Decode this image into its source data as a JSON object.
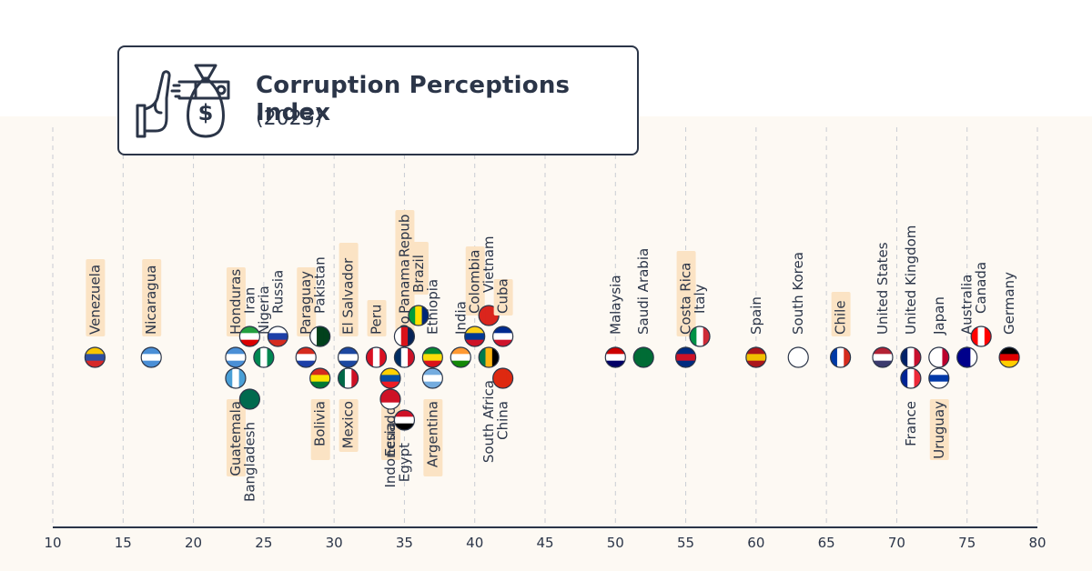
{
  "chart_data": {
    "type": "scatter",
    "title": "Corruption Perceptions Index",
    "subtitle": "(2023)",
    "xlim": [
      10,
      80
    ],
    "x_ticks": [
      10,
      15,
      20,
      25,
      30,
      35,
      40,
      45,
      50,
      55,
      60,
      65,
      70,
      75,
      80
    ],
    "grid": "vertical dashed",
    "highlight_color": "#fbe3c4",
    "points": [
      {
        "country": "Venezuela",
        "score": 13,
        "label": "above",
        "highlight": true
      },
      {
        "country": "Nicaragua",
        "score": 17,
        "label": "above",
        "highlight": true
      },
      {
        "country": "Honduras",
        "score": 23,
        "label": "above",
        "highlight": true
      },
      {
        "country": "Guatemala",
        "score": 23,
        "label": "below",
        "highlight": true
      },
      {
        "country": "Iran",
        "score": 24,
        "label": "above",
        "highlight": false
      },
      {
        "country": "Nigeria",
        "score": 25,
        "label": "above",
        "highlight": false
      },
      {
        "country": "Bangladesh",
        "score": 24,
        "label": "below",
        "highlight": false
      },
      {
        "country": "Russia",
        "score": 26,
        "label": "above",
        "highlight": false
      },
      {
        "country": "Paraguay",
        "score": 28,
        "label": "above",
        "highlight": true
      },
      {
        "country": "Pakistan",
        "score": 29,
        "label": "above",
        "highlight": false
      },
      {
        "country": "Bolivia",
        "score": 29,
        "label": "below",
        "highlight": true
      },
      {
        "country": "El Salvador",
        "score": 31,
        "label": "above",
        "highlight": true
      },
      {
        "country": "Mexico",
        "score": 31,
        "label": "below",
        "highlight": true
      },
      {
        "country": "Peru",
        "score": 33,
        "label": "above",
        "highlight": true
      },
      {
        "country": "Ecuador",
        "score": 34,
        "label": "below",
        "highlight": true
      },
      {
        "country": "Dominican Republic",
        "score": 35,
        "label": "above",
        "highlight": true
      },
      {
        "country": "Indonesia",
        "score": 34,
        "label": "below",
        "highlight": false
      },
      {
        "country": "Panama",
        "score": 35,
        "label": "above",
        "highlight": true
      },
      {
        "country": "Egypt",
        "score": 35,
        "label": "below",
        "highlight": false
      },
      {
        "country": "Brazil",
        "score": 36,
        "label": "above",
        "highlight": true
      },
      {
        "country": "Ethiopia",
        "score": 37,
        "label": "above",
        "highlight": false
      },
      {
        "country": "Argentina",
        "score": 37,
        "label": "below",
        "highlight": true
      },
      {
        "country": "India",
        "score": 39,
        "label": "above",
        "highlight": false
      },
      {
        "country": "Colombia",
        "score": 40,
        "label": "above",
        "highlight": true
      },
      {
        "country": "South Africa",
        "score": 41,
        "label": "below",
        "highlight": false
      },
      {
        "country": "Vietnam",
        "score": 41,
        "label": "above",
        "highlight": false
      },
      {
        "country": "China",
        "score": 42,
        "label": "below",
        "highlight": false
      },
      {
        "country": "Cuba",
        "score": 42,
        "label": "above",
        "highlight": true
      },
      {
        "country": "Malaysia",
        "score": 50,
        "label": "above",
        "highlight": false
      },
      {
        "country": "Saudi Arabia",
        "score": 52,
        "label": "above",
        "highlight": false
      },
      {
        "country": "Costa Rica",
        "score": 55,
        "label": "above",
        "highlight": true
      },
      {
        "country": "Italy",
        "score": 56,
        "label": "above",
        "highlight": false
      },
      {
        "country": "Spain",
        "score": 60,
        "label": "above",
        "highlight": false
      },
      {
        "country": "South Korea",
        "score": 63,
        "label": "above",
        "highlight": false
      },
      {
        "country": "Chile",
        "score": 66,
        "label": "above",
        "highlight": true
      },
      {
        "country": "United States",
        "score": 69,
        "label": "above",
        "highlight": false
      },
      {
        "country": "United Kingdom",
        "score": 71,
        "label": "above",
        "highlight": false
      },
      {
        "country": "France",
        "score": 71,
        "label": "below",
        "highlight": false
      },
      {
        "country": "Japan",
        "score": 73,
        "label": "above",
        "highlight": false
      },
      {
        "country": "Uruguay",
        "score": 73,
        "label": "below",
        "highlight": true
      },
      {
        "country": "Australia",
        "score": 75,
        "label": "above",
        "highlight": false
      },
      {
        "country": "Canada",
        "score": 76,
        "label": "above",
        "highlight": false
      },
      {
        "country": "Germany",
        "score": 78,
        "label": "above",
        "highlight": false
      }
    ]
  },
  "labels": {
    "dominican_republic_display": "Dominican Repub"
  },
  "icons": {
    "title_icon": "bribe-money-bag-icon"
  }
}
